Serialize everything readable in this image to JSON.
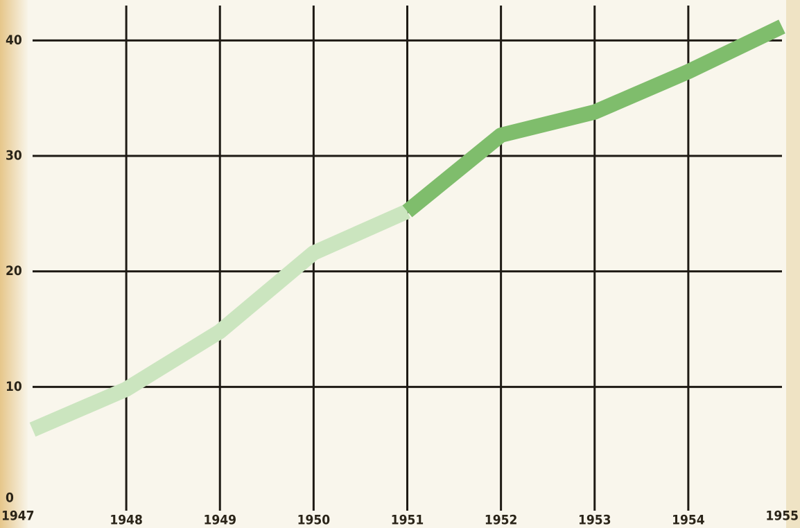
{
  "chart_data": {
    "type": "line",
    "x": [
      1947,
      1948,
      1949,
      1950,
      1951,
      1952,
      1953,
      1954,
      1955
    ],
    "series": [
      {
        "color": "#cbe5bf",
        "values": [
          6.3,
          9.8,
          14.8,
          21.6,
          25.2,
          null,
          null,
          null,
          null
        ]
      },
      {
        "color": "#7fbd6c",
        "values": [
          null,
          null,
          null,
          null,
          25.2,
          31.8,
          33.8,
          37.3,
          41.2
        ]
      }
    ],
    "xlim": [
      1947,
      1955
    ],
    "xticks": [
      1947,
      1948,
      1949,
      1950,
      1951,
      1952,
      1953,
      1954,
      1955
    ],
    "ylim": [
      0,
      43.5
    ],
    "yticks": [
      0,
      10,
      20,
      30,
      40
    ],
    "grid": true
  }
}
